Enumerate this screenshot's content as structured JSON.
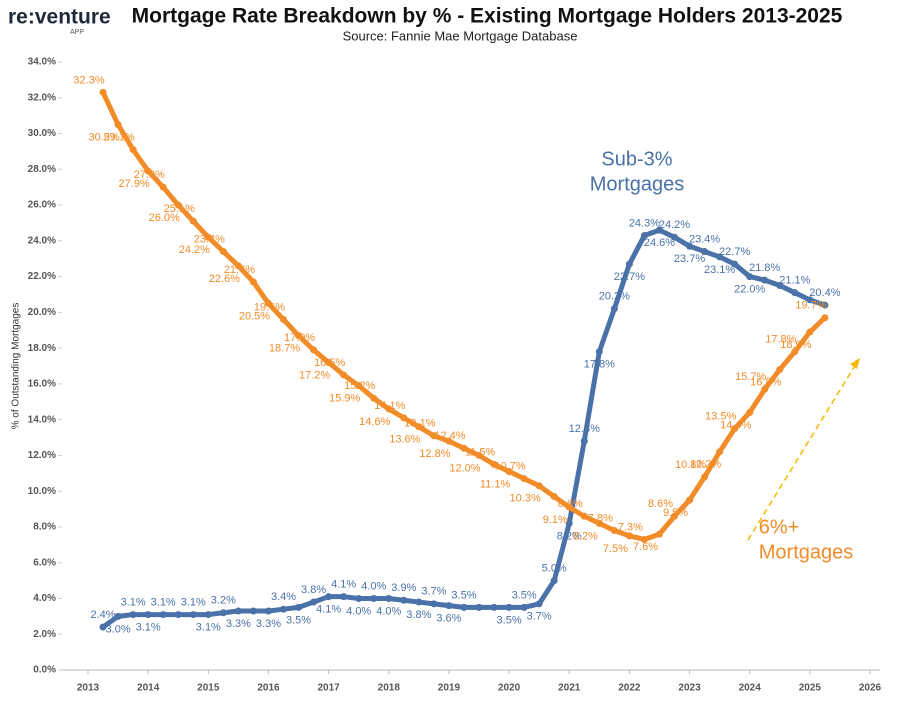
{
  "logo": "re:venture",
  "logo_sub": "APP",
  "chart_data": {
    "type": "line",
    "title": "Mortgage Rate Breakdown by % - Existing Mortgage Holders 2013-2025",
    "subtitle": "Source: Fannie Mae Mortgage Database",
    "y_label": "% of Outstanding Mortgages",
    "annotations": [
      "Sub-3%",
      "Mortgages",
      "6%+",
      "Mortgages"
    ],
    "xlim": [
      2013,
      2026
    ],
    "xticks": [
      2013,
      2014,
      2015,
      2016,
      2017,
      2018,
      2019,
      2020,
      2021,
      2022,
      2023,
      2024,
      2025,
      2026
    ],
    "ylim": [
      0,
      34
    ],
    "yticks": [
      {
        "value": 0,
        "label": "0.0%"
      },
      {
        "value": 2,
        "label": "2.0%"
      },
      {
        "value": 4,
        "label": "4.0%"
      },
      {
        "value": 6,
        "label": "6.0%"
      },
      {
        "value": 8,
        "label": "8.0%"
      },
      {
        "value": 10,
        "label": "10.0%"
      },
      {
        "value": 12,
        "label": "12.0%"
      },
      {
        "value": 14,
        "label": "14.0%"
      },
      {
        "value": 16,
        "label": "16.0%"
      },
      {
        "value": 18,
        "label": "18.0%"
      },
      {
        "value": 20,
        "label": "20.0%"
      },
      {
        "value": 22,
        "label": "22.0%"
      },
      {
        "value": 24,
        "label": "24.0%"
      },
      {
        "value": 26,
        "label": "26.0%"
      },
      {
        "value": 28,
        "label": "28.0%"
      },
      {
        "value": 30,
        "label": "30.0%"
      },
      {
        "value": 32,
        "label": "32.0%"
      },
      {
        "value": 34,
        "label": "34.0%"
      }
    ],
    "x": [
      2013.25,
      2013.5,
      2013.75,
      2014,
      2014.25,
      2014.5,
      2014.75,
      2015,
      2015.25,
      2015.5,
      2015.75,
      2016,
      2016.25,
      2016.5,
      2016.75,
      2017,
      2017.25,
      2017.5,
      2017.75,
      2018,
      2018.25,
      2018.5,
      2018.75,
      2019,
      2019.25,
      2019.5,
      2019.75,
      2020,
      2020.25,
      2020.5,
      2020.75,
      2021,
      2021.25,
      2021.5,
      2021.75,
      2022,
      2022.25,
      2022.5,
      2022.75,
      2023,
      2023.25,
      2023.5,
      2023.75,
      2024,
      2024.25,
      2024.5,
      2024.75,
      2025,
      2025.25
    ],
    "series": [
      {
        "name": "Sub-3% Mortgages",
        "color": "#4a72a8",
        "values": [
          2.4,
          3.0,
          3.1,
          3.1,
          3.1,
          3.1,
          3.1,
          3.1,
          3.2,
          3.3,
          3.3,
          3.3,
          3.4,
          3.5,
          3.8,
          4.1,
          4.1,
          4.0,
          4.0,
          4.0,
          3.9,
          3.8,
          3.7,
          3.6,
          3.5,
          3.5,
          3.5,
          3.5,
          3.5,
          3.7,
          5.0,
          8.2,
          12.8,
          17.8,
          20.2,
          22.7,
          24.3,
          24.6,
          24.2,
          23.7,
          23.4,
          23.1,
          22.7,
          22.0,
          21.8,
          21.5,
          21.1,
          20.7,
          20.4
        ],
        "value_labels": [
          "2.4%",
          "3.0%",
          "3.1%",
          "3.1%",
          "3.1%",
          null,
          "3.1%",
          "3.1%",
          "3.2%",
          "3.3%",
          null,
          "3.3%",
          "3.4%",
          "3.5%",
          "3.8%",
          "4.1%",
          "4.1%",
          "4.0%",
          "4.0%",
          "4.0%",
          "3.9%",
          "3.8%",
          "3.7%",
          "3.6%",
          "3.5%",
          null,
          null,
          "3.5%",
          "3.5%",
          "3.7%",
          "5.0%",
          "8.2%",
          "12.8%",
          "17.8%",
          "20.2%",
          "22.7%",
          "24.3%",
          "24.6%",
          "24.2%",
          "23.7%",
          "23.4%",
          "23.1%",
          "22.7%",
          "22.0%",
          "21.8%",
          null,
          "21.1%",
          null,
          "20.4%"
        ]
      },
      {
        "name": "6%+ Mortgages",
        "color": "#f28c28",
        "values": [
          32.3,
          30.5,
          29.1,
          27.9,
          27.0,
          26.0,
          25.1,
          24.2,
          23.4,
          22.6,
          21.7,
          20.5,
          19.6,
          18.7,
          17.9,
          17.2,
          16.5,
          15.9,
          15.2,
          14.6,
          14.1,
          13.6,
          13.1,
          12.8,
          12.4,
          12.0,
          11.5,
          11.1,
          10.7,
          10.3,
          9.7,
          9.1,
          8.6,
          8.2,
          7.8,
          7.5,
          7.3,
          7.6,
          8.6,
          9.5,
          10.8,
          12.2,
          13.5,
          14.4,
          15.7,
          16.8,
          17.8,
          18.9,
          19.7
        ],
        "value_labels": [
          "32.3%",
          "30.5%",
          "29.1%",
          "27.9%",
          "27.0%",
          "26.0%",
          "25.1%",
          "24.2%",
          "23.4%",
          "22.6%",
          "21.7%",
          "20.5%",
          "19.6%",
          "18.7%",
          "17.9%",
          "17.2%",
          "16.5%",
          "15.9%",
          "15.2%",
          "14.6%",
          "14.1%",
          "13.6%",
          "13.1%",
          "12.8%",
          "12.4%",
          "12.0%",
          "11.5%",
          "11.1%",
          "10.7%",
          "10.3%",
          null,
          "9.1%",
          "8.6%",
          "8.2%",
          "7.8%",
          "7.5%",
          "7.3%",
          "7.6%",
          "8.6%",
          "9.5%",
          "10.8%",
          "12.2%",
          "13.5%",
          "14.4%",
          "15.7%",
          "16.8%",
          "17.8%",
          "18.9%",
          "19.7%"
        ]
      }
    ]
  }
}
